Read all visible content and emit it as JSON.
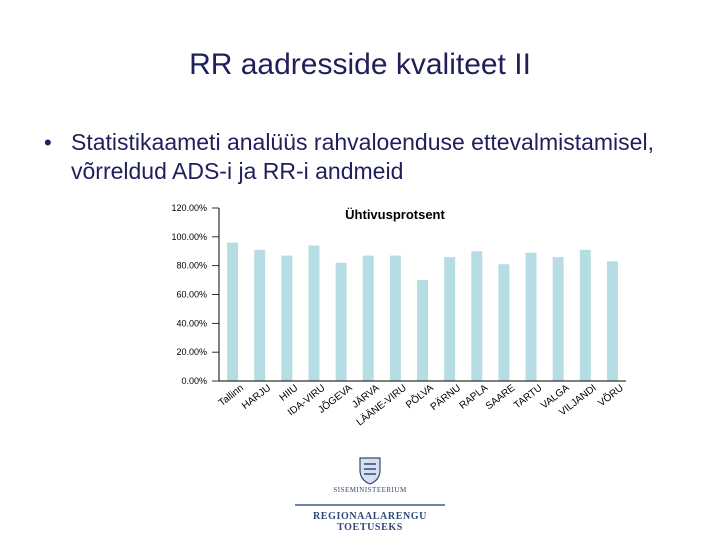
{
  "slide": {
    "title": "RR aadresside kvaliteet II",
    "bullet": "Statistikaameti analüüs rahvaloenduse ettevalmistamisel, võrreldud ADS-i ja RR-i andmeid"
  },
  "logo": {
    "ministry": "SISEMINISTEERIUM",
    "program": "REGIONAALARENGU TOETUSEKS"
  },
  "colors": {
    "bar": "#b6dde3",
    "axis": "#000000",
    "text": "#1f1f5c"
  },
  "chart_data": {
    "type": "bar",
    "title": "Ühtivusprotsent",
    "categories": [
      "Tallinn",
      "HARJU",
      "HIIU",
      "IDA-VIRU",
      "JÕGEVA",
      "JÄRVA",
      "LÄÄNE-VIRU",
      "PÕLVA",
      "PÄRNU",
      "RAPLA",
      "SAARE",
      "TARTU",
      "VALGA",
      "VILJANDI",
      "VÕRU"
    ],
    "values": [
      96,
      91,
      87,
      94,
      82,
      87,
      87,
      70,
      86,
      90,
      81,
      89,
      86,
      91,
      83
    ],
    "ylim": [
      0,
      120
    ],
    "yticks": [
      "0.00%",
      "20.00%",
      "40.00%",
      "60.00%",
      "80.00%",
      "100.00%",
      "120.00%"
    ],
    "grid": false,
    "legend": "none"
  }
}
